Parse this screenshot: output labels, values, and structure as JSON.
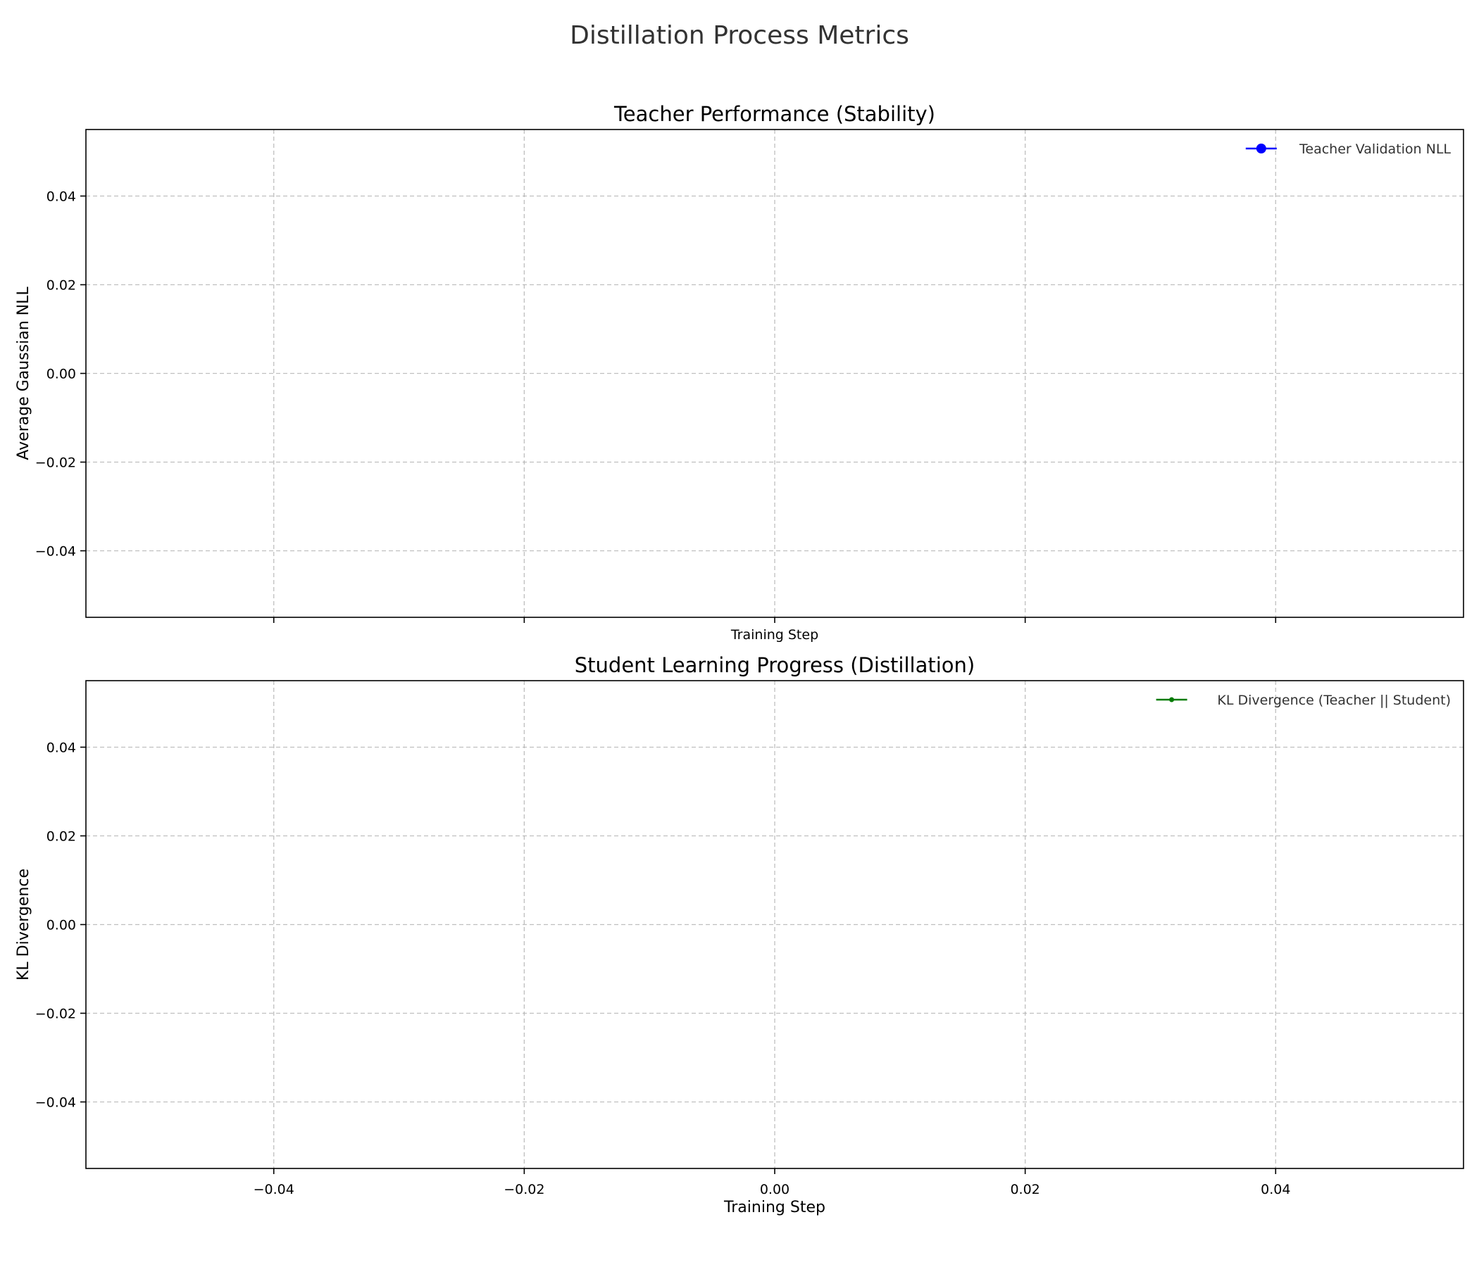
{
  "figure": {
    "title": "Distillation Process Metrics"
  },
  "chart_data": [
    {
      "type": "line",
      "title": "Teacher Performance (Stability)",
      "xlabel": "Training Step",
      "ylabel": "Average Gaussian NLL",
      "xlim": [
        -0.055,
        0.055
      ],
      "ylim": [
        -0.055,
        0.055
      ],
      "x_ticks": [
        -0.04,
        -0.02,
        0.0,
        0.02,
        0.04
      ],
      "x_tick_labels_visible": false,
      "y_ticks": [
        0.04,
        0.02,
        0.0,
        -0.02,
        -0.04
      ],
      "y_tick_labels": [
        "0.04",
        "0.02",
        "0.00",
        "−0.02",
        "−0.04"
      ],
      "grid": true,
      "legend_position": "top-right",
      "series": [
        {
          "name": "Teacher Validation NLL",
          "color": "#0000ff",
          "marker": "circle-large",
          "x": [],
          "y": []
        }
      ]
    },
    {
      "type": "line",
      "title": "Student Learning Progress (Distillation)",
      "xlabel": "Training Step",
      "ylabel": "KL Divergence",
      "xlim": [
        -0.055,
        0.055
      ],
      "ylim": [
        -0.055,
        0.055
      ],
      "x_ticks": [
        -0.04,
        -0.02,
        0.0,
        0.02,
        0.04
      ],
      "x_tick_labels": [
        "−0.04",
        "−0.02",
        "0.00",
        "0.02",
        "0.04"
      ],
      "x_tick_labels_visible": true,
      "y_ticks": [
        0.04,
        0.02,
        0.0,
        -0.02,
        -0.04
      ],
      "y_tick_labels": [
        "0.04",
        "0.02",
        "0.00",
        "−0.02",
        "−0.04"
      ],
      "grid": true,
      "legend_position": "top-right",
      "series": [
        {
          "name": "KL Divergence (Teacher || Student)",
          "color": "#007a00",
          "marker": "circle-small",
          "x": [],
          "y": []
        }
      ]
    }
  ]
}
